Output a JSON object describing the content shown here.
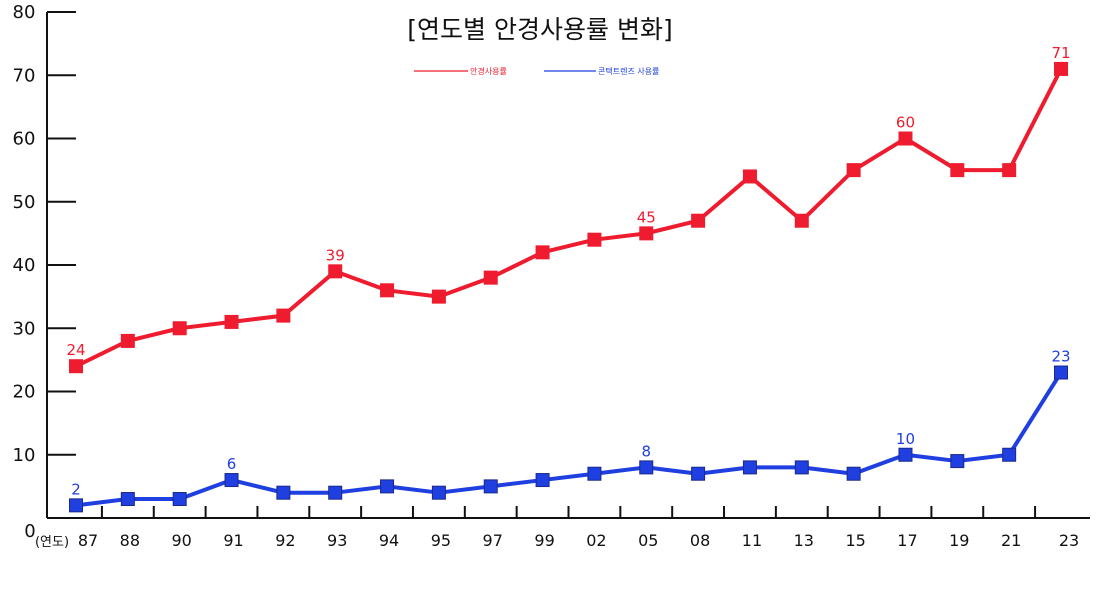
{
  "chart_data": {
    "type": "line",
    "title": "[연도별 안경사용률 변화]",
    "x_unit_label": "(연도)",
    "origin_label": "0",
    "categories": [
      "87",
      "88",
      "90",
      "91",
      "92",
      "93",
      "94",
      "95",
      "97",
      "99",
      "02",
      "05",
      "08",
      "11",
      "13",
      "15",
      "17",
      "19",
      "21",
      "23"
    ],
    "ylim": [
      0,
      80
    ],
    "yticks": [
      10,
      20,
      30,
      40,
      50,
      60,
      70,
      80
    ],
    "grid": false,
    "legend_position": "top-center",
    "series": [
      {
        "name": "안경사용률",
        "color": "#ee1c2e",
        "values": [
          24,
          28,
          30,
          31,
          32,
          39,
          36,
          35,
          38,
          42,
          44,
          45,
          47,
          54,
          47,
          55,
          60,
          55,
          55,
          71
        ],
        "labeled_points": [
          {
            "category": "87",
            "text": "24"
          },
          {
            "category": "93",
            "text": "39"
          },
          {
            "category": "05",
            "text": "45"
          },
          {
            "category": "17",
            "text": "60"
          },
          {
            "category": "23",
            "text": "71"
          }
        ]
      },
      {
        "name": "콘택트렌즈 사용률",
        "color": "#1f3fe0",
        "values": [
          2,
          3,
          3,
          6,
          4,
          4,
          5,
          4,
          5,
          6,
          7,
          8,
          7,
          8,
          8,
          7,
          10,
          9,
          10,
          23
        ],
        "labeled_points": [
          {
            "category": "87",
            "text": "2"
          },
          {
            "category": "91",
            "text": "6"
          },
          {
            "category": "05",
            "text": "8"
          },
          {
            "category": "17",
            "text": "10"
          },
          {
            "category": "23",
            "text": "23"
          }
        ]
      }
    ]
  }
}
